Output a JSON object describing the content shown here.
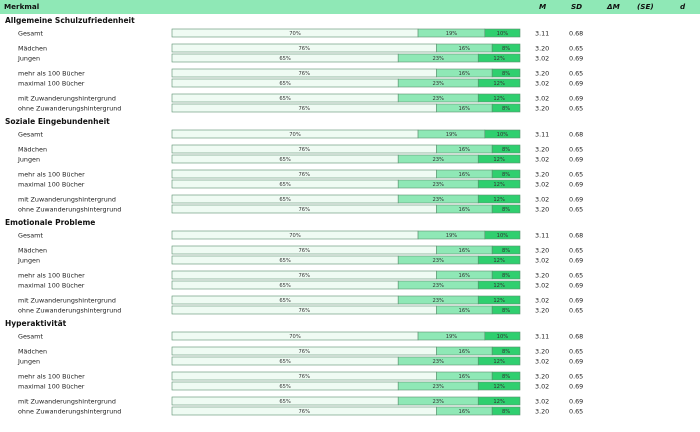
{
  "header": {
    "merkmal": "Merkmal",
    "m": "M",
    "sd": "SD",
    "delta_m": "ΔM",
    "se": "(SE)",
    "d": "d"
  },
  "colors": {
    "header_bg": "#8fe8b6",
    "seg1": "#effbf3",
    "seg2": "#8fe8b6",
    "seg3": "#2fcf6f",
    "bar_border": "#5a8f6e"
  },
  "chart_data": {
    "type": "stacked-bar-table",
    "sections": [
      {
        "title": "Allgemeine Schulzufriedenheit",
        "rows": [
          {
            "label": "Gesamt",
            "segments": [
              70,
              19,
              10
            ],
            "segment_labels": [
              "70%",
              "19%",
              "10%"
            ],
            "m": "3.11",
            "sd": "0.68",
            "group": 0
          },
          {
            "label": "Mädchen",
            "segments": [
              76,
              16,
              8
            ],
            "segment_labels": [
              "76%",
              "16%",
              "8%"
            ],
            "m": "3.20",
            "sd": "0.65",
            "group": 1
          },
          {
            "label": "Jungen",
            "segments": [
              65,
              23,
              12
            ],
            "segment_labels": [
              "65%",
              "23%",
              "12%"
            ],
            "m": "3.02",
            "sd": "0.69",
            "group": 1
          },
          {
            "label": "mehr als 100 Bücher",
            "segments": [
              76,
              16,
              8
            ],
            "segment_labels": [
              "76%",
              "16%",
              "8%"
            ],
            "m": "3.20",
            "sd": "0.65",
            "group": 2
          },
          {
            "label": "maximal 100 Bücher",
            "segments": [
              65,
              23,
              12
            ],
            "segment_labels": [
              "65%",
              "23%",
              "12%"
            ],
            "m": "3.02",
            "sd": "0.69",
            "group": 2
          },
          {
            "label": "mit Zuwanderungshintergrund",
            "segments": [
              65,
              23,
              12
            ],
            "segment_labels": [
              "65%",
              "23%",
              "12%"
            ],
            "m": "3.02",
            "sd": "0.69",
            "group": 3
          },
          {
            "label": "ohne Zuwanderungshintergrund",
            "segments": [
              76,
              16,
              8
            ],
            "segment_labels": [
              "76%",
              "16%",
              "8%"
            ],
            "m": "3.20",
            "sd": "0.65",
            "group": 3
          }
        ]
      },
      {
        "title": "Soziale Eingebundenheit",
        "rows": [
          {
            "label": "Gesamt",
            "segments": [
              70,
              19,
              10
            ],
            "segment_labels": [
              "70%",
              "19%",
              "10%"
            ],
            "m": "3.11",
            "sd": "0.68",
            "group": 0
          },
          {
            "label": "Mädchen",
            "segments": [
              76,
              16,
              8
            ],
            "segment_labels": [
              "76%",
              "16%",
              "8%"
            ],
            "m": "3.20",
            "sd": "0.65",
            "group": 1
          },
          {
            "label": "Jungen",
            "segments": [
              65,
              23,
              12
            ],
            "segment_labels": [
              "65%",
              "23%",
              "12%"
            ],
            "m": "3.02",
            "sd": "0.69",
            "group": 1
          },
          {
            "label": "mehr als 100 Bücher",
            "segments": [
              76,
              16,
              8
            ],
            "segment_labels": [
              "76%",
              "16%",
              "8%"
            ],
            "m": "3.20",
            "sd": "0.65",
            "group": 2
          },
          {
            "label": "maximal 100 Bücher",
            "segments": [
              65,
              23,
              12
            ],
            "segment_labels": [
              "65%",
              "23%",
              "12%"
            ],
            "m": "3.02",
            "sd": "0.69",
            "group": 2
          },
          {
            "label": "mit Zuwanderungshintergrund",
            "segments": [
              65,
              23,
              12
            ],
            "segment_labels": [
              "65%",
              "23%",
              "12%"
            ],
            "m": "3.02",
            "sd": "0.69",
            "group": 3
          },
          {
            "label": "ohne Zuwanderungshintergrund",
            "segments": [
              76,
              16,
              8
            ],
            "segment_labels": [
              "76%",
              "16%",
              "8%"
            ],
            "m": "3.20",
            "sd": "0.65",
            "group": 3
          }
        ]
      },
      {
        "title": "Emotionale Probleme",
        "rows": [
          {
            "label": "Gesamt",
            "segments": [
              70,
              19,
              10
            ],
            "segment_labels": [
              "70%",
              "19%",
              "10%"
            ],
            "m": "3.11",
            "sd": "0.68",
            "group": 0
          },
          {
            "label": "Mädchen",
            "segments": [
              76,
              16,
              8
            ],
            "segment_labels": [
              "76%",
              "16%",
              "8%"
            ],
            "m": "3.20",
            "sd": "0.65",
            "group": 1
          },
          {
            "label": "Jungen",
            "segments": [
              65,
              23,
              12
            ],
            "segment_labels": [
              "65%",
              "23%",
              "12%"
            ],
            "m": "3.02",
            "sd": "0.69",
            "group": 1
          },
          {
            "label": "mehr als 100 Bücher",
            "segments": [
              76,
              16,
              8
            ],
            "segment_labels": [
              "76%",
              "16%",
              "8%"
            ],
            "m": "3.20",
            "sd": "0.65",
            "group": 2
          },
          {
            "label": "maximal 100 Bücher",
            "segments": [
              65,
              23,
              12
            ],
            "segment_labels": [
              "65%",
              "23%",
              "12%"
            ],
            "m": "3.02",
            "sd": "0.69",
            "group": 2
          },
          {
            "label": "mit Zuwanderungshintergrund",
            "segments": [
              65,
              23,
              12
            ],
            "segment_labels": [
              "65%",
              "23%",
              "12%"
            ],
            "m": "3.02",
            "sd": "0.69",
            "group": 3
          },
          {
            "label": "ohne Zuwanderungshintergrund",
            "segments": [
              76,
              16,
              8
            ],
            "segment_labels": [
              "76%",
              "16%",
              "8%"
            ],
            "m": "3.20",
            "sd": "0.65",
            "group": 3
          }
        ]
      },
      {
        "title": "Hyperaktivität",
        "rows": [
          {
            "label": "Gesamt",
            "segments": [
              70,
              19,
              10
            ],
            "segment_labels": [
              "70%",
              "19%",
              "10%"
            ],
            "m": "3.11",
            "sd": "0.68",
            "group": 0
          },
          {
            "label": "Mädchen",
            "segments": [
              76,
              16,
              8
            ],
            "segment_labels": [
              "76%",
              "16%",
              "8%"
            ],
            "m": "3.20",
            "sd": "0.65",
            "group": 1
          },
          {
            "label": "Jungen",
            "segments": [
              65,
              23,
              12
            ],
            "segment_labels": [
              "65%",
              "23%",
              "12%"
            ],
            "m": "3.02",
            "sd": "0.69",
            "group": 1
          },
          {
            "label": "mehr als 100 Bücher",
            "segments": [
              76,
              16,
              8
            ],
            "segment_labels": [
              "76%",
              "16%",
              "8%"
            ],
            "m": "3.20",
            "sd": "0.65",
            "group": 2
          },
          {
            "label": "maximal 100 Bücher",
            "segments": [
              65,
              23,
              12
            ],
            "segment_labels": [
              "65%",
              "23%",
              "12%"
            ],
            "m": "3.02",
            "sd": "0.69",
            "group": 2
          },
          {
            "label": "mit Zuwanderungshintergrund",
            "segments": [
              65,
              23,
              12
            ],
            "segment_labels": [
              "65%",
              "23%",
              "12%"
            ],
            "m": "3.02",
            "sd": "0.69",
            "group": 3
          },
          {
            "label": "ohne Zuwanderungshintergrund",
            "segments": [
              76,
              16,
              8
            ],
            "segment_labels": [
              "76%",
              "16%",
              "8%"
            ],
            "m": "3.20",
            "sd": "0.65",
            "group": 3
          }
        ]
      }
    ]
  }
}
